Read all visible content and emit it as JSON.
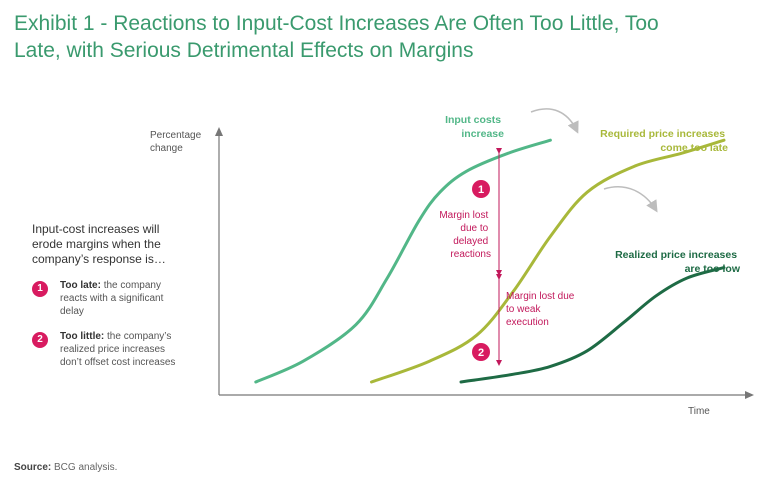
{
  "title": {
    "line1": "Exhibit 1 - Reactions to Input-Cost Increases Are Often Too Little, Too",
    "line2": "Late, with Serious Detrimental Effects on Margins"
  },
  "chart_data": {
    "type": "line",
    "xlabel": "Time",
    "ylabel_lines": [
      "Percentage",
      "change"
    ],
    "xlim": [
      0,
      100
    ],
    "ylim": [
      0,
      100
    ],
    "series": [
      {
        "name": "Input costs increase",
        "label_lines": [
          "Input costs",
          "increase"
        ],
        "color": "#52b788",
        "x": [
          7,
          16,
          26,
          32,
          38,
          42,
          47,
          55,
          63
        ],
        "y": [
          5,
          13,
          27,
          45,
          67,
          78,
          86,
          93,
          98
        ]
      },
      {
        "name": "Required price increases come too late",
        "label_lines": [
          "Required price increases",
          "come too late"
        ],
        "color": "#a8b83a",
        "x": [
          29,
          40,
          49,
          56,
          63,
          70,
          79,
          88,
          96
        ],
        "y": [
          5,
          13,
          23,
          40,
          61,
          78,
          88,
          93,
          98
        ]
      },
      {
        "name": "Realized price increases are too low",
        "label_lines": [
          "Realized price increases",
          "are too low"
        ],
        "color": "#1e6b45",
        "x": [
          46,
          56,
          63,
          70,
          77,
          83,
          89,
          96
        ],
        "y": [
          5,
          8,
          11,
          17,
          28,
          38,
          45,
          49
        ]
      }
    ],
    "annotations": [
      {
        "number": "1",
        "lines": [
          "Margin lost",
          "due to",
          "delayed",
          "reactions"
        ],
        "x": 63,
        "y_range": [
          47,
          98
        ]
      },
      {
        "number": "2",
        "lines": [
          "Margin lost due",
          "to weak",
          "execution"
        ],
        "x": 63,
        "y_range": [
          11,
          47
        ]
      }
    ]
  },
  "sidebar": {
    "intro_lines": [
      "Input-cost increases will",
      "erode margins when the",
      "company’s response is…"
    ],
    "items": [
      {
        "number": "1",
        "lead": "Too late:",
        "rest_lines": [
          " the company",
          "reacts with a significant",
          "delay"
        ]
      },
      {
        "number": "2",
        "lead": "Too little:",
        "rest_lines": [
          " the company’s",
          "realized price increases",
          "don’t offset cost increases"
        ]
      }
    ]
  },
  "source": {
    "label": "Source:",
    "text": " BCG analysis."
  }
}
